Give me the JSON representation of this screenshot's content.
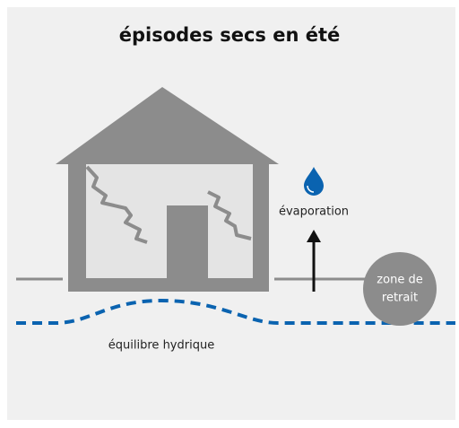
{
  "header": {
    "title": "épisodes secs en été"
  },
  "labels": {
    "evaporation": "évaporation",
    "zone": [
      "zone de",
      "retrait"
    ],
    "equilibrium": "équilibre hydrique"
  }
}
